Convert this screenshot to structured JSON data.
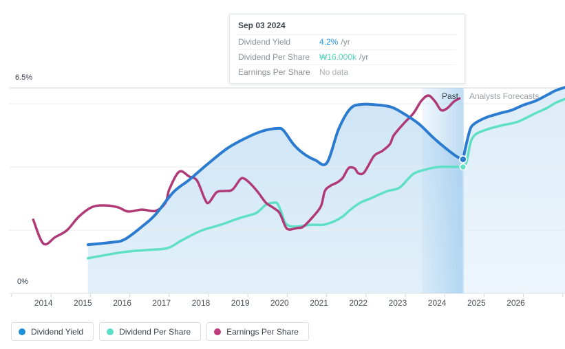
{
  "tooltip": {
    "date": "Sep 03 2024",
    "rows": [
      {
        "label": "Dividend Yield",
        "value": "4.2%",
        "suffix": "/yr",
        "value_color": "#2196f3"
      },
      {
        "label": "Dividend Per Share",
        "value": "₩16.000k",
        "suffix": "/yr",
        "value_color": "#53d3bf"
      },
      {
        "label": "Earnings Per Share",
        "value": "No data",
        "suffix": "",
        "value_color": "#a9afb4"
      }
    ]
  },
  "labels": {
    "past": "Past",
    "forecasts": "Analysts Forecasts"
  },
  "axis": {
    "y_max_label": "6.5%",
    "y_min_label": "0%"
  },
  "legend": [
    {
      "label": "Dividend Yield",
      "color": "#1e8fd8"
    },
    {
      "label": "Dividend Per Share",
      "color": "#5be0c8"
    },
    {
      "label": "Earnings Per Share",
      "color": "#c23a7d"
    }
  ],
  "chart_data": {
    "type": "area",
    "xlim": [
      2013.14,
      2027.25
    ],
    "ylim": [
      0,
      6.5
    ],
    "grid_pct": [
      2,
      4,
      6
    ],
    "x_tick_years": [
      2014,
      2015,
      2016,
      2017,
      2018,
      2019,
      2020,
      2021,
      2022,
      2023,
      2024,
      2025,
      2026
    ],
    "divider_year": 2024.66,
    "past_band": [
      2023.62,
      2024.66
    ],
    "plot_scale_note": "all series plotted on the 0–6.5% yield axis; Dividend Per Share ₩16.000k corresponds to plot value 4.0 at Sep 2024",
    "markers": [
      {
        "series": "Dividend Yield",
        "x": 2024.66,
        "y": 4.24,
        "color": "#2b7cd0"
      },
      {
        "series": "Dividend Per Share",
        "x": 2024.66,
        "y": 4.0,
        "color": "#5fe0c6"
      }
    ],
    "series": [
      {
        "name": "Dividend Yield",
        "color": "#2b7cd0",
        "width": 4,
        "past": [
          [
            2015.13,
            1.54
          ],
          [
            2015.7,
            1.61
          ],
          [
            2016.05,
            1.7
          ],
          [
            2016.5,
            2.11
          ],
          [
            2016.85,
            2.5
          ],
          [
            2017.3,
            3.2
          ],
          [
            2017.7,
            3.59
          ],
          [
            2018.15,
            4.07
          ],
          [
            2018.65,
            4.57
          ],
          [
            2019.1,
            4.89
          ],
          [
            2019.55,
            5.13
          ],
          [
            2019.95,
            5.22
          ],
          [
            2020.1,
            5.15
          ],
          [
            2020.35,
            4.72
          ],
          [
            2020.6,
            4.43
          ],
          [
            2020.9,
            4.22
          ],
          [
            2021.2,
            4.13
          ],
          [
            2021.5,
            5.2
          ],
          [
            2021.8,
            5.85
          ],
          [
            2022.1,
            5.98
          ],
          [
            2022.5,
            5.96
          ],
          [
            2022.85,
            5.89
          ],
          [
            2023.2,
            5.65
          ],
          [
            2023.55,
            5.35
          ],
          [
            2023.9,
            4.93
          ],
          [
            2024.2,
            4.61
          ],
          [
            2024.5,
            4.33
          ],
          [
            2024.66,
            4.24
          ]
        ],
        "forecast": [
          [
            2024.66,
            4.24
          ],
          [
            2024.75,
            4.76
          ],
          [
            2024.85,
            5.22
          ],
          [
            2024.95,
            5.37
          ],
          [
            2025.1,
            5.48
          ],
          [
            2025.3,
            5.59
          ],
          [
            2025.6,
            5.7
          ],
          [
            2025.9,
            5.8
          ],
          [
            2026.2,
            5.96
          ],
          [
            2026.5,
            6.09
          ],
          [
            2026.8,
            6.28
          ],
          [
            2027.0,
            6.41
          ],
          [
            2027.25,
            6.52
          ]
        ]
      },
      {
        "name": "Dividend Per Share",
        "color": "#5fe0c6",
        "width": 3.5,
        "past": [
          [
            2015.13,
            1.11
          ],
          [
            2016.0,
            1.3
          ],
          [
            2016.6,
            1.37
          ],
          [
            2017.15,
            1.43
          ],
          [
            2017.5,
            1.67
          ],
          [
            2018.0,
            1.98
          ],
          [
            2018.5,
            2.17
          ],
          [
            2019.0,
            2.39
          ],
          [
            2019.4,
            2.54
          ],
          [
            2019.65,
            2.8
          ],
          [
            2019.85,
            2.87
          ],
          [
            2019.95,
            2.83
          ],
          [
            2020.05,
            2.54
          ],
          [
            2020.15,
            2.22
          ],
          [
            2020.35,
            2.11
          ],
          [
            2020.8,
            2.17
          ],
          [
            2021.1,
            2.17
          ],
          [
            2021.35,
            2.26
          ],
          [
            2021.6,
            2.43
          ],
          [
            2021.8,
            2.65
          ],
          [
            2022.05,
            2.87
          ],
          [
            2022.3,
            3.0
          ],
          [
            2022.5,
            3.11
          ],
          [
            2022.75,
            3.24
          ],
          [
            2023.05,
            3.35
          ],
          [
            2023.4,
            3.78
          ],
          [
            2023.75,
            3.93
          ],
          [
            2024.05,
            4.0
          ],
          [
            2024.66,
            4.0
          ]
        ],
        "forecast": [
          [
            2024.66,
            4.0
          ],
          [
            2024.75,
            4.17
          ],
          [
            2024.85,
            4.76
          ],
          [
            2024.95,
            5.0
          ],
          [
            2025.1,
            5.11
          ],
          [
            2025.35,
            5.22
          ],
          [
            2025.7,
            5.33
          ],
          [
            2026.05,
            5.43
          ],
          [
            2026.5,
            5.7
          ],
          [
            2026.8,
            5.87
          ],
          [
            2027.0,
            6.02
          ],
          [
            2027.25,
            6.15
          ]
        ]
      },
      {
        "name": "Earnings Per Share",
        "color": "#b03a78",
        "width": 3.5,
        "past": [
          [
            2013.74,
            2.33
          ],
          [
            2014.0,
            1.57
          ],
          [
            2014.3,
            1.78
          ],
          [
            2014.6,
            2.0
          ],
          [
            2014.9,
            2.43
          ],
          [
            2015.25,
            2.74
          ],
          [
            2015.6,
            2.78
          ],
          [
            2015.9,
            2.72
          ],
          [
            2016.15,
            2.59
          ],
          [
            2016.5,
            2.65
          ],
          [
            2016.85,
            2.61
          ],
          [
            2017.1,
            2.87
          ],
          [
            2017.2,
            3.3
          ],
          [
            2017.45,
            3.85
          ],
          [
            2017.7,
            3.7
          ],
          [
            2017.9,
            3.57
          ],
          [
            2018.1,
            2.98
          ],
          [
            2018.2,
            2.87
          ],
          [
            2018.4,
            3.2
          ],
          [
            2018.6,
            3.24
          ],
          [
            2018.8,
            3.28
          ],
          [
            2019.0,
            3.61
          ],
          [
            2019.1,
            3.63
          ],
          [
            2019.25,
            3.48
          ],
          [
            2019.45,
            3.2
          ],
          [
            2019.65,
            2.87
          ],
          [
            2019.85,
            2.7
          ],
          [
            2020.0,
            2.54
          ],
          [
            2020.15,
            2.11
          ],
          [
            2020.25,
            2.02
          ],
          [
            2020.45,
            2.07
          ],
          [
            2020.6,
            2.11
          ],
          [
            2020.85,
            2.43
          ],
          [
            2021.05,
            2.76
          ],
          [
            2021.15,
            3.24
          ],
          [
            2021.3,
            3.41
          ],
          [
            2021.45,
            3.5
          ],
          [
            2021.6,
            3.65
          ],
          [
            2021.75,
            3.96
          ],
          [
            2021.9,
            3.96
          ],
          [
            2022.0,
            3.8
          ],
          [
            2022.15,
            3.83
          ],
          [
            2022.4,
            4.35
          ],
          [
            2022.6,
            4.5
          ],
          [
            2022.8,
            4.72
          ],
          [
            2022.9,
            5.0
          ],
          [
            2023.15,
            5.37
          ],
          [
            2023.4,
            5.7
          ],
          [
            2023.6,
            6.09
          ],
          [
            2023.78,
            6.26
          ],
          [
            2023.95,
            6.07
          ],
          [
            2024.1,
            5.8
          ],
          [
            2024.25,
            5.85
          ],
          [
            2024.43,
            6.07
          ],
          [
            2024.57,
            6.17
          ]
        ],
        "forecast": []
      }
    ]
  }
}
